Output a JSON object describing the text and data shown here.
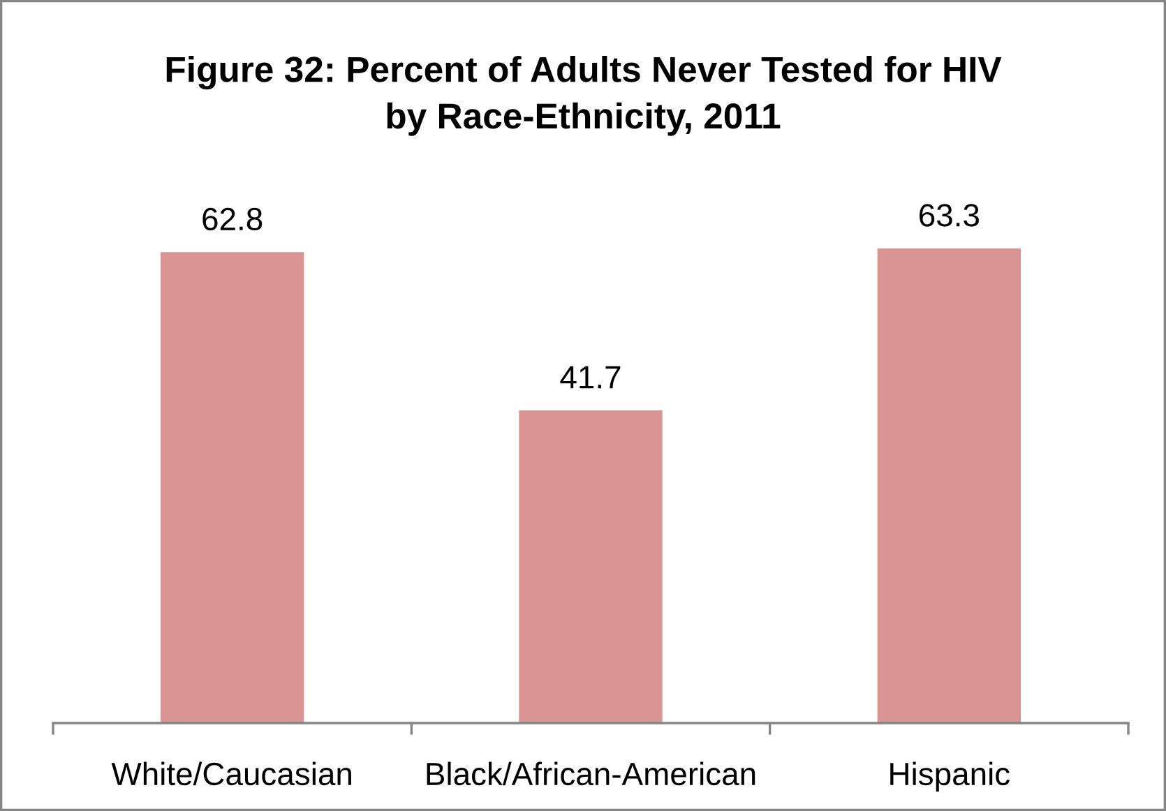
{
  "chart_data": {
    "type": "bar",
    "title": "Figure 32: Percent of Adults Never Tested for HIV\nby Race-Ethnicity, 2011",
    "categories": [
      "White/Caucasian",
      "Black/African-American",
      "Hispanic"
    ],
    "values": [
      62.8,
      41.7,
      63.3
    ],
    "color": "#d99594",
    "data_labels": true,
    "grid": false,
    "legend": false
  }
}
